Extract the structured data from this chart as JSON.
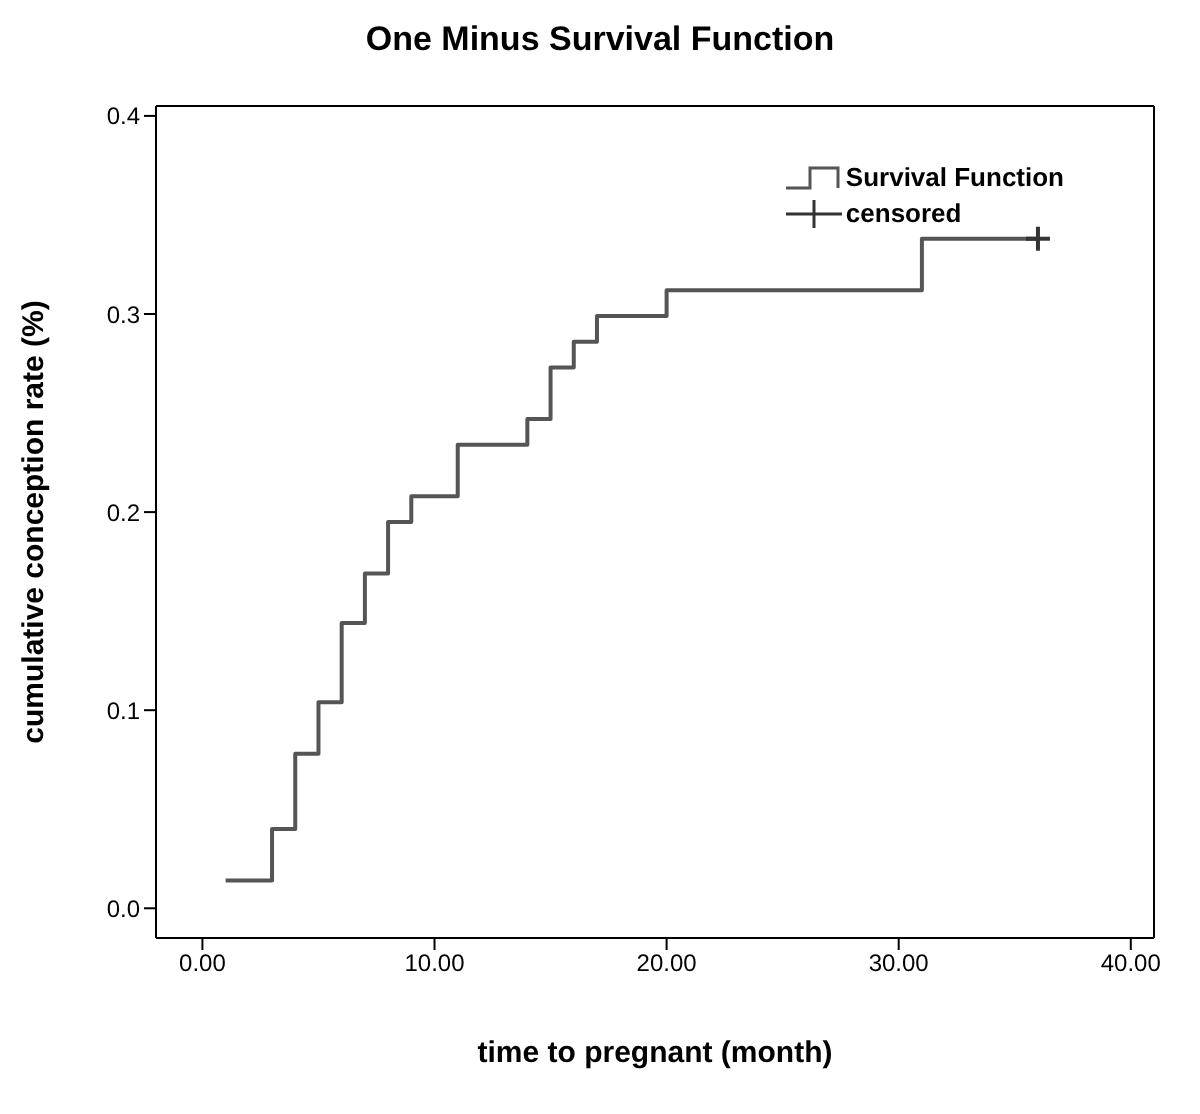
{
  "chart_data": {
    "type": "step",
    "title": "One Minus Survival Function",
    "xlabel": "time to pregnant (month)",
    "ylabel": "cumulative conception rate (%)",
    "xlim": [
      -2,
      41
    ],
    "xticks": [
      {
        "value": 0,
        "label": "0.00"
      },
      {
        "value": 10,
        "label": "10.00"
      },
      {
        "value": 20,
        "label": "20.00"
      },
      {
        "value": 30,
        "label": "30.00"
      },
      {
        "value": 40,
        "label": "40.00"
      }
    ],
    "ylim": [
      -0.015,
      0.405
    ],
    "yticks": [
      {
        "value": 0,
        "label": "0.0"
      },
      {
        "value": 0.1,
        "label": "0.1"
      },
      {
        "value": 0.2,
        "label": "0.2"
      },
      {
        "value": 0.3,
        "label": "0.3"
      },
      {
        "value": 0.4,
        "label": "0.4"
      }
    ],
    "legend": "top right",
    "series": [
      {
        "name": "Survival Function",
        "color": "#555555",
        "marker": "none",
        "x": [
          1,
          3,
          4,
          5,
          6,
          7,
          8,
          9,
          11,
          14,
          15,
          16,
          17,
          20,
          31,
          36
        ],
        "values": [
          0.014,
          0.04,
          0.078,
          0.104,
          0.144,
          0.169,
          0.195,
          0.208,
          0.234,
          0.247,
          0.273,
          0.286,
          0.299,
          0.312,
          0.338,
          0.338
        ]
      },
      {
        "name": "censored",
        "type": "scatter",
        "color": "#333333",
        "marker": "cross",
        "x": [
          36
        ],
        "values": [
          0.338
        ]
      }
    ]
  }
}
